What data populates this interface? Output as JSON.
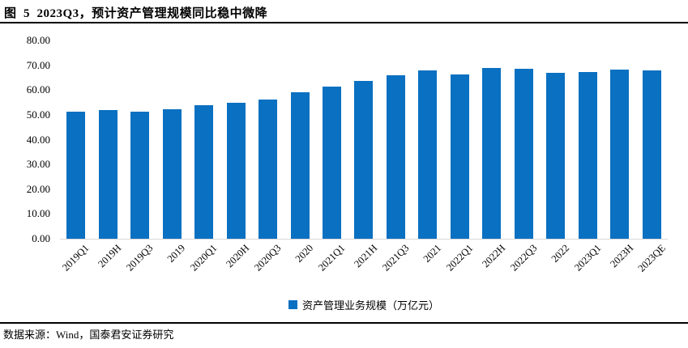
{
  "header": {
    "title": "图  5  2023Q3，预计资产管理规模同比稳中微降"
  },
  "chart_data": {
    "type": "bar",
    "title": "图 5 2023Q3，预计资产管理规模同比稳中微降",
    "categories": [
      "2019Q1",
      "2019H",
      "2019Q3",
      "2019",
      "2020Q1",
      "2020H",
      "2020Q3",
      "2020",
      "2021Q1",
      "2021H",
      "2021Q3",
      "2021",
      "2022Q1",
      "2022H",
      "2022Q3",
      "2022",
      "2023Q1",
      "2023H",
      "2023QE"
    ],
    "values": [
      51.4,
      51.8,
      51.2,
      52.3,
      53.8,
      54.9,
      56.2,
      59.0,
      61.3,
      63.7,
      66.0,
      67.9,
      66.3,
      68.8,
      68.5,
      66.8,
      67.2,
      68.1,
      68.0
    ],
    "series_name": "资产管理业务规模（万亿元）",
    "xlabel": "",
    "ylabel": "",
    "ylim": [
      0,
      80
    ],
    "ytick_step": 10,
    "ytick_labels": [
      "0.00",
      "10.00",
      "20.00",
      "30.00",
      "40.00",
      "50.00",
      "60.00",
      "70.00",
      "80.00"
    ],
    "bar_color": "#0a70c1",
    "grid": false,
    "legend_position": "bottom"
  },
  "footer": {
    "source": "数据来源：Wind，国泰君安证券研究"
  }
}
